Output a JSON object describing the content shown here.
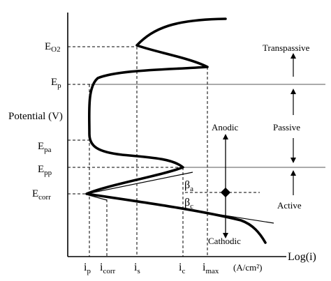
{
  "y_axis_title": "Potential (V)",
  "x_axis_title": "Log(i)",
  "x_unit": "(A/cm²)",
  "y_levels": {
    "eo2": {
      "main": "E",
      "sub": "O2"
    },
    "ep": {
      "main": "E",
      "sub": "p"
    },
    "epa": {
      "main": "E",
      "sub": "pa"
    },
    "epp": {
      "main": "E",
      "sub": "pp"
    },
    "ecorr": {
      "main": "E",
      "sub": "corr"
    }
  },
  "x_levels": {
    "ip": {
      "main": "i",
      "sub": "p"
    },
    "icorr": {
      "main": "i",
      "sub": "corr"
    },
    "is": {
      "main": "i",
      "sub": "s"
    },
    "ic": {
      "main": "i",
      "sub": "c"
    },
    "imax": {
      "main": "i",
      "sub": "max"
    }
  },
  "tafel": {
    "anodic_slope": {
      "main": "β",
      "sub": "a"
    },
    "cathodic_slope": {
      "main": "β",
      "sub": "c"
    }
  },
  "direction_labels": {
    "anodic": "Anodic",
    "cathodic": "Cathodic"
  },
  "region_labels": {
    "transpassive": "Transpassive",
    "passive": "Passive",
    "active": "Active"
  }
}
